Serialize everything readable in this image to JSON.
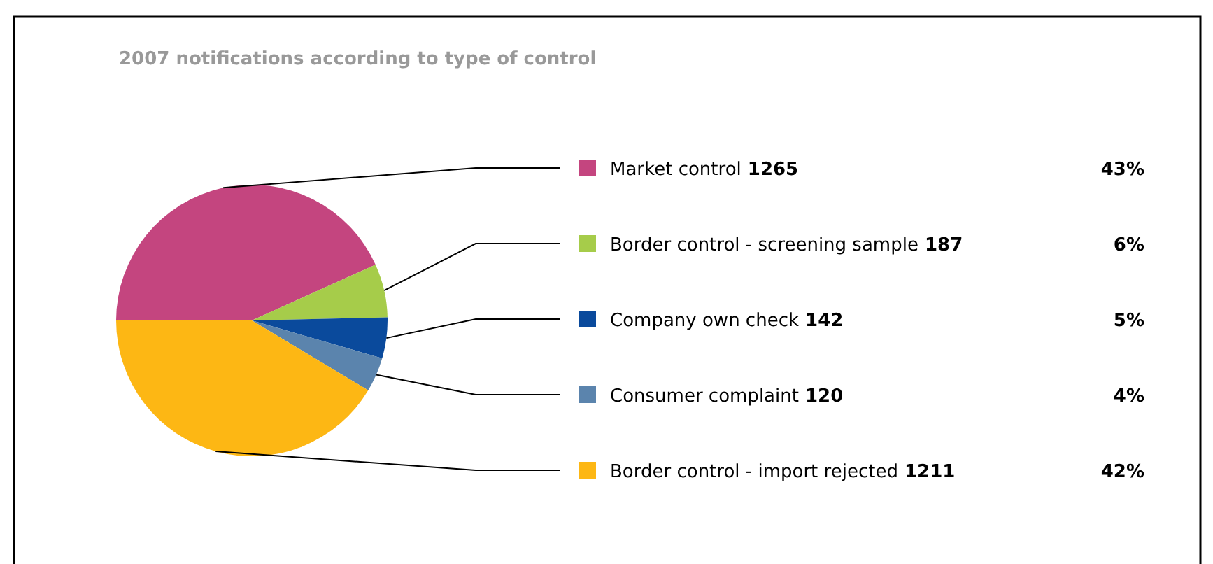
{
  "chart_data": {
    "type": "pie",
    "title": "2007 notifications according to type of control",
    "categories": [
      "Market control",
      "Border control - screening sample",
      "Company own check",
      "Consumer complaint",
      "Border control - import rejected"
    ],
    "values": [
      1265,
      187,
      142,
      120,
      1211
    ],
    "colors": [
      "#c4457f",
      "#a6cc4a",
      "#0a4a9c",
      "#5b84ad",
      "#fdb714"
    ],
    "data_labels": true,
    "annotations": [
      "43%",
      "6%",
      "5%",
      "4%",
      "42%"
    ],
    "legend": "right"
  }
}
